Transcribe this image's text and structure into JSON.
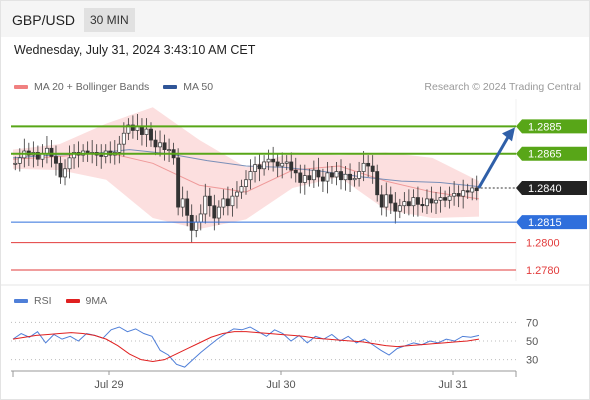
{
  "header": {
    "pair": "GBP/USD",
    "timeframe": "30 MIN",
    "datetime": "Wednesday, July 31, 2024 3:43:10 AM CET"
  },
  "legend": {
    "bollinger": {
      "label": "MA 20 + Bollinger Bands",
      "color": "#f08080"
    },
    "ma50": {
      "label": "MA 50",
      "color": "#2f5597"
    },
    "credit": "Research © 2024 Trading Central"
  },
  "rsi_legend": {
    "rsi": {
      "label": "RSI",
      "color": "#4f7fd8"
    },
    "ma9": {
      "label": "9MA",
      "color": "#e02020"
    }
  },
  "chart_data": {
    "type": "candlestick",
    "price_range": [
      1.2772,
      1.2905
    ],
    "x_labels": [
      "Jul 29",
      "Jul 30",
      "Jul 31"
    ],
    "levels": [
      {
        "value": 1.2885,
        "label": "1.2885",
        "kind": "resistance",
        "color": "#58a618"
      },
      {
        "value": 1.2865,
        "label": "1.2865",
        "kind": "resistance",
        "color": "#58a618"
      },
      {
        "value": 1.284,
        "label": "1.2840",
        "kind": "current",
        "color": "#222222"
      },
      {
        "value": 1.2815,
        "label": "1.2815",
        "kind": "pivot",
        "color": "#2f6fdc"
      },
      {
        "value": 1.28,
        "label": "1.2800",
        "kind": "support",
        "color": "#e23b3b"
      },
      {
        "value": 1.278,
        "label": "1.2780",
        "kind": "support",
        "color": "#e23b3b"
      }
    ],
    "closes": [
      1.2858,
      1.2862,
      1.2867,
      1.2864,
      1.2866,
      1.2861,
      1.2865,
      1.2869,
      1.2863,
      1.2858,
      1.2848,
      1.2854,
      1.2862,
      1.2866,
      1.2864,
      1.2867,
      1.2865,
      1.2866,
      1.2864,
      1.2863,
      1.2867,
      1.2864,
      1.2866,
      1.2872,
      1.288,
      1.2886,
      1.2882,
      1.2885,
      1.2879,
      1.2883,
      1.2875,
      1.287,
      1.2873,
      1.2868,
      1.2868,
      1.2862,
      1.2826,
      1.2832,
      1.282,
      1.2809,
      1.2815,
      1.2821,
      1.2834,
      1.2827,
      1.2818,
      1.2826,
      1.2832,
      1.2827,
      1.2834,
      1.2837,
      1.2841,
      1.2846,
      1.2852,
      1.2857,
      1.2854,
      1.2859,
      1.2861,
      1.2859,
      1.2856,
      1.2858,
      1.2859,
      1.2853,
      1.2851,
      1.2844,
      1.2849,
      1.2846,
      1.2853,
      1.2848,
      1.2845,
      1.2851,
      1.2848,
      1.2852,
      1.2846,
      1.285,
      1.2846,
      1.2847,
      1.2852,
      1.2858,
      1.2856,
      1.2852,
      1.2835,
      1.2826,
      1.2835,
      1.2829,
      1.2823,
      1.2827,
      1.283,
      1.2827,
      1.2833,
      1.2828,
      1.2827,
      1.2832,
      1.2829,
      1.2831,
      1.2833,
      1.2831,
      1.2834,
      1.2836,
      1.2834,
      1.2838,
      1.2837,
      1.284,
      1.2838
    ],
    "bands": [
      {
        "ma": 1.2861,
        "upper": 1.2868,
        "lower": 1.2854
      },
      {
        "ma": 1.2863,
        "upper": 1.2872,
        "lower": 1.2853
      },
      {
        "ma": 1.2866,
        "upper": 1.2887,
        "lower": 1.2846
      },
      {
        "ma": 1.2858,
        "upper": 1.2899,
        "lower": 1.2818
      },
      {
        "ma": 1.2842,
        "upper": 1.2875,
        "lower": 1.281
      },
      {
        "ma": 1.2837,
        "upper": 1.2855,
        "lower": 1.2817
      },
      {
        "ma": 1.2853,
        "upper": 1.2866,
        "lower": 1.284
      },
      {
        "ma": 1.2856,
        "upper": 1.2864,
        "lower": 1.2848
      },
      {
        "ma": 1.2845,
        "upper": 1.2866,
        "lower": 1.2824
      },
      {
        "ma": 1.2837,
        "upper": 1.2862,
        "lower": 1.2818
      },
      {
        "ma": 1.2832,
        "upper": 1.2845,
        "lower": 1.2819
      }
    ],
    "ma50": [
      1.2862,
      1.2864,
      1.2865,
      1.2868,
      1.2865,
      1.286,
      1.2856,
      1.2855,
      1.2852,
      1.2848,
      1.2845,
      1.2844,
      1.2841
    ],
    "rsi": {
      "gridlines": [
        70,
        50,
        30
      ],
      "range": [
        20,
        80
      ],
      "rsi_values": [
        52,
        58,
        54,
        60,
        48,
        57,
        52,
        55,
        50,
        58,
        56,
        53,
        62,
        65,
        60,
        63,
        58,
        55,
        40,
        35,
        25,
        22,
        30,
        38,
        45,
        52,
        58,
        63,
        62,
        65,
        60,
        55,
        62,
        58,
        50,
        56,
        48,
        55,
        52,
        57,
        50,
        55,
        48,
        52,
        46,
        40,
        35,
        42,
        45,
        48,
        46,
        50,
        48,
        52,
        50,
        55,
        54,
        56
      ],
      "ma9_values": [
        52,
        54,
        56,
        57,
        58,
        59,
        58,
        56,
        52,
        45,
        36,
        30,
        28,
        30,
        36,
        42,
        48,
        54,
        58,
        60,
        60,
        59,
        58,
        57,
        56,
        55,
        53,
        52,
        51,
        50,
        49,
        47,
        45,
        44,
        45,
        46,
        47,
        48,
        49,
        50,
        52
      ]
    }
  }
}
